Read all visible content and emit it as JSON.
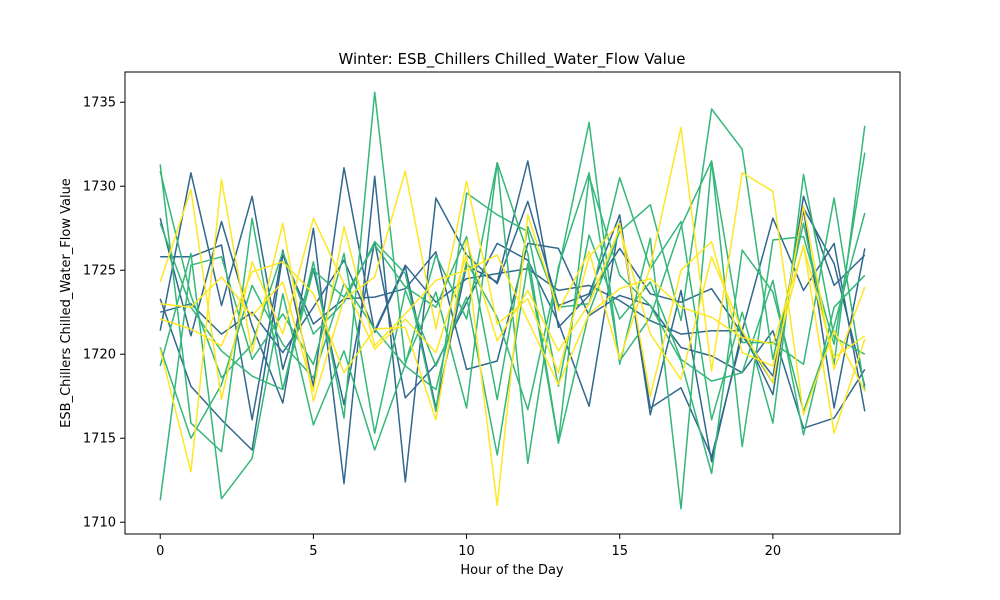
{
  "chart_data": {
    "type": "line",
    "title": "Winter: ESB_Chillers Chilled_Water_Flow Value",
    "xlabel": "Hour of the Day",
    "ylabel": "ESB_Chillers Chilled_Water_Flow Value",
    "xlim": [
      -1.15,
      24.15
    ],
    "ylim": [
      1709.3,
      1736.8
    ],
    "xticks": [
      0,
      5,
      10,
      15,
      20
    ],
    "yticks": [
      1710,
      1715,
      1720,
      1725,
      1730,
      1735
    ],
    "grid": false,
    "x": [
      0,
      1,
      2,
      3,
      4,
      5,
      6,
      7,
      8,
      9,
      10,
      11,
      12,
      13,
      14,
      15,
      16,
      17,
      18,
      19,
      20,
      21,
      22,
      23
    ],
    "series": [
      {
        "color": "#31688e",
        "values": [
          1725.8,
          1725.8,
          1726.5,
          1716.1,
          1726.2,
          1718.1,
          1731.1,
          1721.3,
          1725.2,
          1716.8,
          1725.3,
          1724.3,
          1731.5,
          1721.6,
          1723.5,
          1726.3,
          1723.6,
          1723.1,
          1723.9,
          1721.2,
          1718.3,
          1728.6,
          1716.8,
          1726.3
        ]
      },
      {
        "color": "#31688e",
        "values": [
          1728.1,
          1721.1,
          1727.9,
          1721.7,
          1717.1,
          1727.5,
          1712.3,
          1730.6,
          1712.4,
          1729.3,
          1725.9,
          1724.2,
          1729.1,
          1722.9,
          1723.6,
          1728.3,
          1716.4,
          1723.8,
          1713.6,
          1721.4,
          1717.6,
          1729.4,
          1724.1,
          1725.9
        ]
      },
      {
        "color": "#31688e",
        "values": [
          1721.4,
          1730.8,
          1722.9,
          1729.4,
          1719.1,
          1725.1,
          1717.0,
          1726.7,
          1717.4,
          1719.4,
          1723.1,
          1726.6,
          1725.6,
          1721.9,
          1716.9,
          1727.9,
          1716.8,
          1718.0,
          1713.9,
          1721.1,
          1718.7,
          1728.7,
          1725.4,
          1718.1
        ]
      },
      {
        "color": "#31688e",
        "values": [
          1723.3,
          1718.1,
          1716.1,
          1714.3,
          1725.9,
          1721.8,
          1723.3,
          1723.4,
          1723.9,
          1726.1,
          1719.1,
          1719.6,
          1726.6,
          1726.3,
          1722.3,
          1723.5,
          1722.9,
          1720.4,
          1719.9,
          1718.9,
          1721.4,
          1715.6,
          1716.2,
          1719.1
        ]
      },
      {
        "color": "#31688e",
        "values": [
          1722.5,
          1723.0,
          1721.2,
          1722.5,
          1720.1,
          1722.8,
          1725.6,
          1721.4,
          1725.3,
          1723.1,
          1724.5,
          1724.8,
          1725.1,
          1723.8,
          1724.1,
          1723.2,
          1722.0,
          1721.2,
          1721.4,
          1721.4,
          1728.1,
          1723.8,
          1726.6,
          1716.6
        ]
      },
      {
        "color": "#35b779",
        "values": [
          1731.3,
          1715.9,
          1714.2,
          1728.1,
          1717.9,
          1725.5,
          1716.2,
          1735.6,
          1719.5,
          1723.7,
          1716.8,
          1731.4,
          1713.5,
          1725.2,
          1730.8,
          1719.6,
          1722.2,
          1727.6,
          1731.5,
          1720.7,
          1720.7,
          1719.4,
          1729.3,
          1717.8
        ]
      },
      {
        "color": "#35b779",
        "values": [
          1711.3,
          1725.3,
          1725.8,
          1719.7,
          1722.4,
          1719.4,
          1726.0,
          1715.3,
          1723.8,
          1719.3,
          1723.4,
          1714.0,
          1725.4,
          1714.7,
          1722.5,
          1727.3,
          1728.9,
          1722.0,
          1734.6,
          1732.2,
          1719.7,
          1727.8,
          1719.4,
          1733.6
        ]
      },
      {
        "color": "#35b779",
        "values": [
          1720.4,
          1715.0,
          1718.2,
          1724.1,
          1720.6,
          1718.6,
          1724.2,
          1721.5,
          1719.3,
          1717.9,
          1725.5,
          1722.2,
          1716.7,
          1725.0,
          1733.8,
          1719.4,
          1726.9,
          1710.8,
          1731.5,
          1714.5,
          1726.8,
          1727.0,
          1720.6,
          1732.0
        ]
      },
      {
        "color": "#35b779",
        "values": [
          1719.3,
          1726.0,
          1711.4,
          1713.8,
          1723.6,
          1715.8,
          1720.2,
          1714.3,
          1719.4,
          1725.9,
          1722.1,
          1731.4,
          1726.0,
          1714.8,
          1730.6,
          1724.7,
          1722.9,
          1719.6,
          1712.9,
          1726.2,
          1723.7,
          1716.6,
          1721.7,
          1728.4
        ]
      },
      {
        "color": "#35b779",
        "values": [
          1727.8,
          1722.8,
          1720.2,
          1718.7,
          1717.9,
          1725.0,
          1723.4,
          1726.5,
          1724.0,
          1722.8,
          1727.0,
          1717.3,
          1727.6,
          1722.8,
          1723.0,
          1730.5,
          1725.1,
          1727.9,
          1716.1,
          1722.5,
          1715.9,
          1730.7,
          1721.0,
          1720.0
        ]
      },
      {
        "color": "#35b779",
        "values": [
          1730.9,
          1723.5,
          1718.6,
          1720.6,
          1726.1,
          1721.2,
          1723.1,
          1726.7,
          1724.8,
          1716.6,
          1729.6,
          1728.3,
          1727.3,
          1718.1,
          1727.1,
          1722.1,
          1724.3,
          1719.7,
          1718.4,
          1718.9,
          1724.4,
          1715.2,
          1722.8,
          1724.7
        ]
      },
      {
        "color": "#fde725",
        "values": [
          1724.3,
          1729.8,
          1717.3,
          1725.5,
          1721.2,
          1728.1,
          1724.2,
          1720.3,
          1722.1,
          1720.1,
          1725.9,
          1711.0,
          1728.3,
          1722.6,
          1726.1,
          1719.7,
          1725.2,
          1733.5,
          1719.0,
          1730.8,
          1729.7,
          1716.4,
          1721.4,
          1717.8
        ]
      },
      {
        "color": "#fde725",
        "values": [
          1720.3,
          1713.0,
          1730.4,
          1720.1,
          1727.8,
          1717.2,
          1723.3,
          1724.6,
          1730.9,
          1721.5,
          1730.3,
          1721.8,
          1723.3,
          1718.9,
          1725.8,
          1727.8,
          1717.5,
          1725.0,
          1726.7,
          1720.1,
          1719.3,
          1726.5,
          1715.3,
          1720.9
        ]
      },
      {
        "color": "#fde725",
        "values": [
          1722.1,
          1721.5,
          1720.5,
          1724.9,
          1725.5,
          1723.6,
          1718.9,
          1721.5,
          1721.6,
          1716.1,
          1726.8,
          1720.8,
          1723.8,
          1720.2,
          1723.0,
          1727.5,
          1721.2,
          1718.5,
          1725.8,
          1721.4,
          1718.3,
          1728.8,
          1719.1,
          1724.0
        ]
      },
      {
        "color": "#fde725",
        "values": [
          1723.0,
          1722.8,
          1724.6,
          1722.3,
          1724.3,
          1717.8,
          1727.6,
          1720.5,
          1722.4,
          1724.4,
          1725.0,
          1725.9,
          1722.0,
          1718.2,
          1722.4,
          1723.9,
          1724.5,
          1722.8,
          1722.2,
          1721.0,
          1720.6,
          1726.4,
          1719.8,
          1721.1
        ]
      }
    ]
  }
}
